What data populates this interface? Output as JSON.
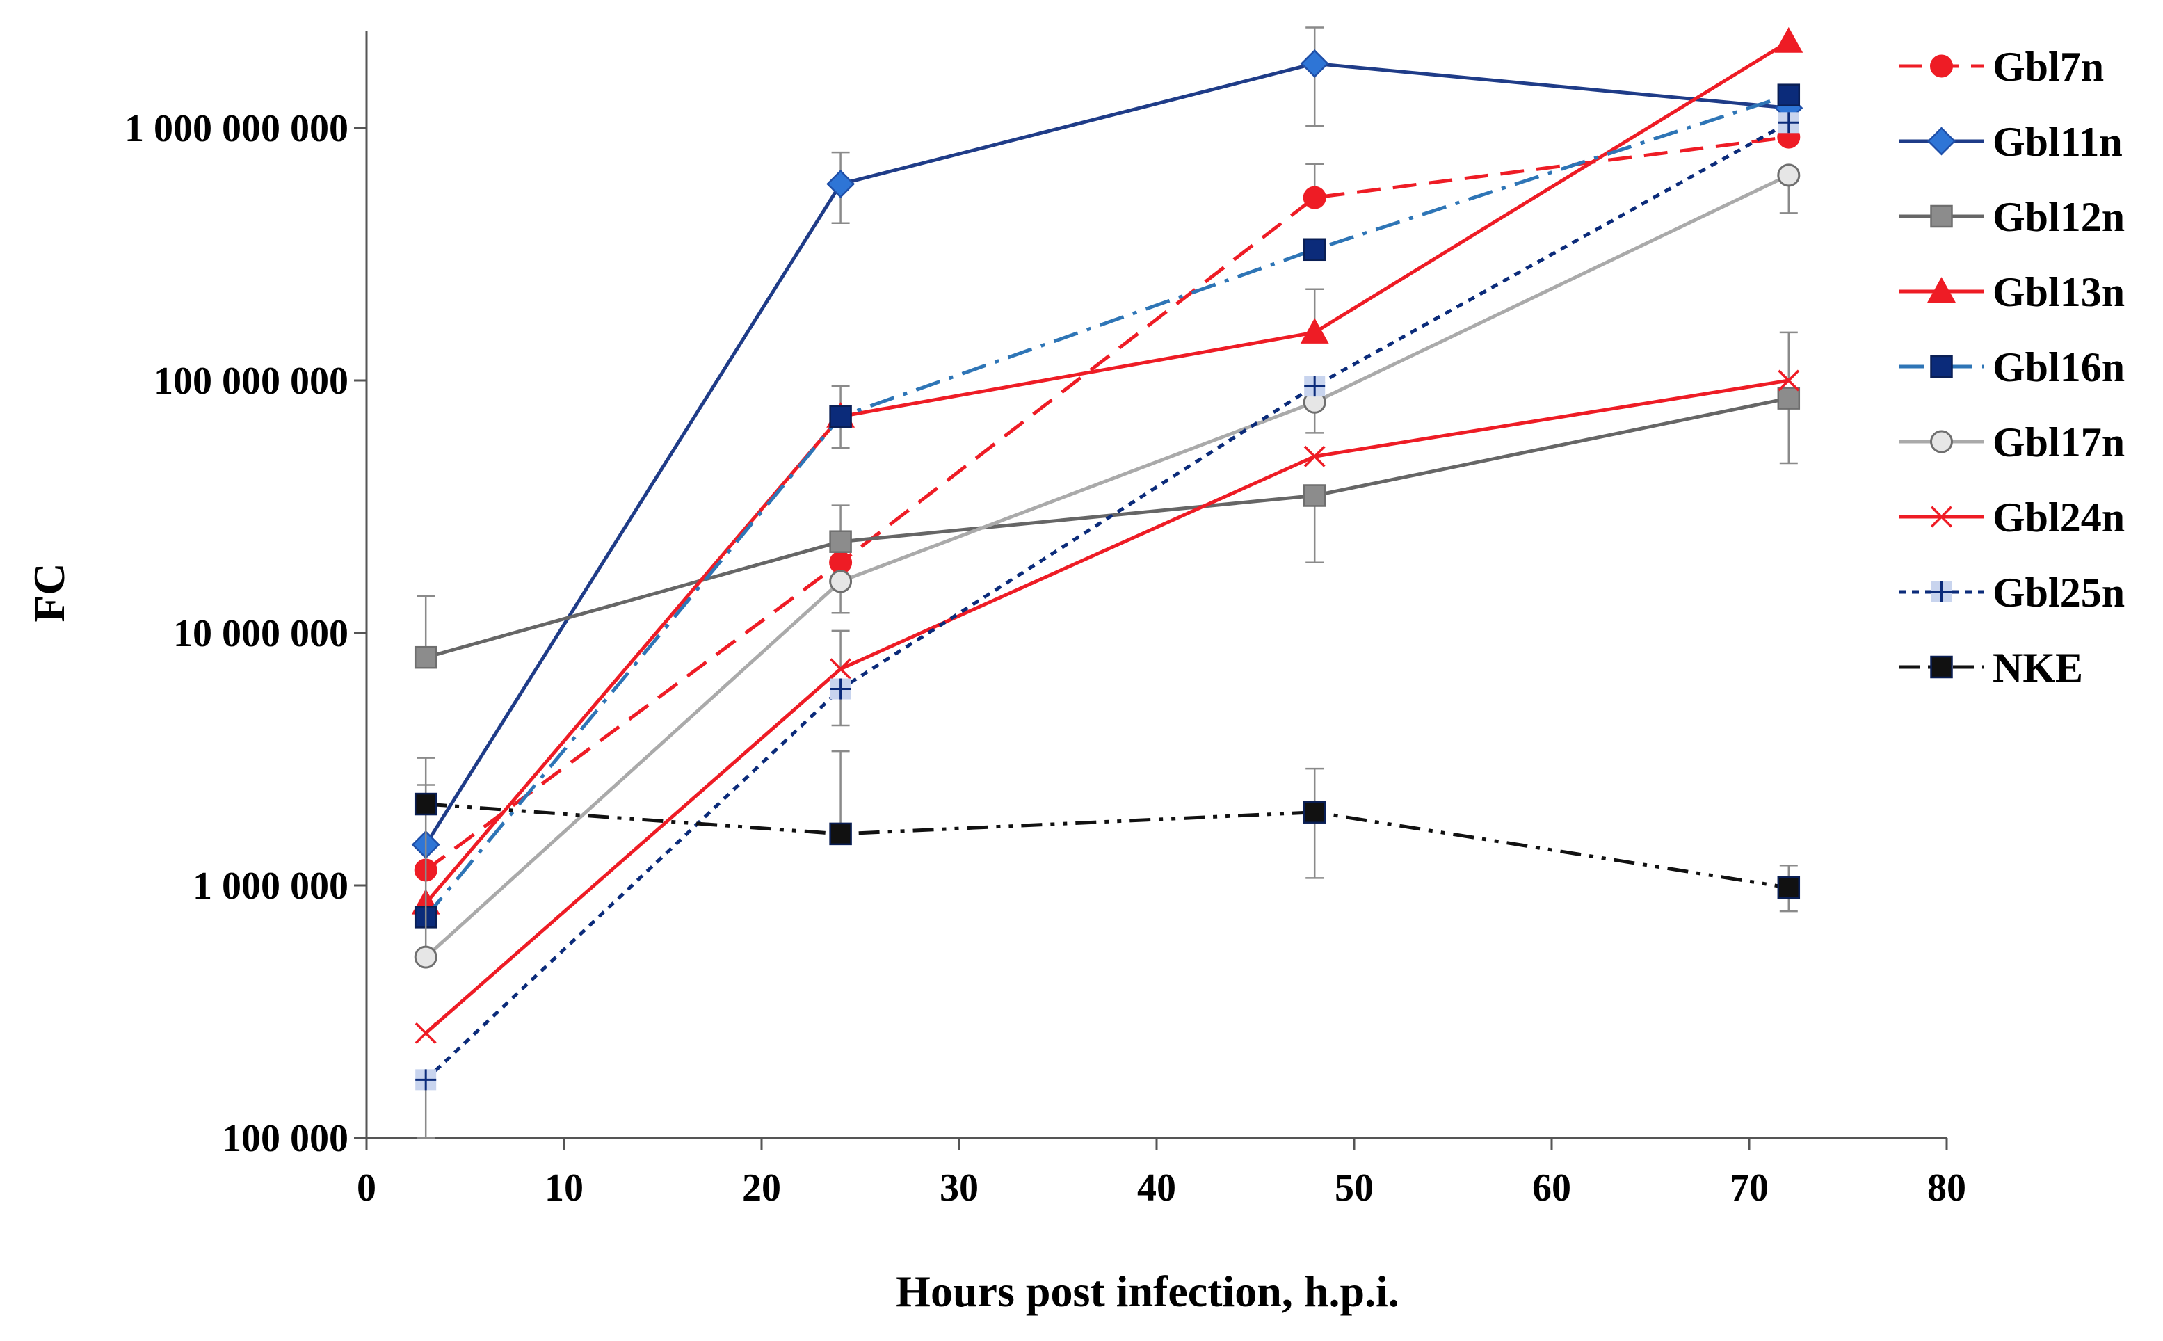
{
  "chart_data": {
    "type": "line",
    "title": "",
    "xlabel": "Hours post infection, h.p.i.",
    "ylabel": "FC",
    "xlim": [
      0,
      80
    ],
    "x_ticks": [
      0,
      10,
      20,
      30,
      40,
      50,
      60,
      70,
      80
    ],
    "x_tick_labels": [
      "0",
      "10",
      "20",
      "30",
      "40",
      "50",
      "60",
      "70",
      "80"
    ],
    "y_scale": "log",
    "ylim": [
      100000,
      3000000000
    ],
    "y_ticks": [
      100000,
      1000000,
      10000000,
      100000000,
      1000000000
    ],
    "y_tick_labels": [
      "100 000",
      "1 000 000",
      "10 000 000",
      "100 000 000",
      "1 000 000 000"
    ],
    "x": [
      3,
      24,
      48,
      72
    ],
    "legend_position": "right",
    "series": [
      {
        "name": "Gbl7n",
        "values": [
          1150000,
          19000000,
          530000000,
          920000000
        ],
        "color": "#ee1c25",
        "dash": "dash",
        "marker": "circle",
        "marker_fill": "#ee1c25",
        "err_upper": [
          null,
          null,
          720000000,
          null
        ],
        "err_lower": [
          null,
          null,
          null,
          null
        ]
      },
      {
        "name": "Gbl11n",
        "values": [
          1450000,
          600000000,
          1800000000,
          1200000000
        ],
        "color": "#1f3c88",
        "dash": "solid",
        "marker": "diamond",
        "marker_fill": "#2e75d6",
        "err_upper": [
          null,
          800000000,
          2500000000,
          null
        ],
        "err_lower": [
          null,
          420000000,
          1020000000,
          null
        ]
      },
      {
        "name": "Gbl12n",
        "values": [
          8000000,
          23000000,
          35000000,
          85000000
        ],
        "color": "#666666",
        "dash": "solid",
        "marker": "square",
        "marker_fill": "#8c8c8c",
        "err_upper": [
          14000000,
          32000000,
          null,
          null
        ],
        "err_lower": [
          null,
          null,
          19000000,
          47000000
        ]
      },
      {
        "name": "Gbl13n",
        "values": [
          850000,
          72000000,
          155000000,
          2200000000
        ],
        "color": "#ee1c25",
        "dash": "solid",
        "marker": "triangle",
        "marker_fill": "#ee1c25",
        "err_upper": [
          null,
          95000000,
          230000000,
          null
        ],
        "err_lower": [
          null,
          54000000,
          null,
          null
        ]
      },
      {
        "name": "Gbl16n",
        "values": [
          750000,
          72000000,
          330000000,
          1350000000
        ],
        "color": "#2e75b6",
        "dash": "dashdot",
        "marker": "square",
        "marker_fill": "#0b2b7a",
        "err_upper": [
          null,
          null,
          null,
          null
        ],
        "err_lower": [
          null,
          null,
          null,
          null
        ]
      },
      {
        "name": "Gbl17n",
        "values": [
          520000,
          16000000,
          82000000,
          650000000
        ],
        "color": "#aaaaaa",
        "dash": "solid",
        "marker": "circle",
        "marker_fill": "#e6e6e6",
        "err_upper": [
          3200000,
          null,
          null,
          null
        ],
        "err_lower": [
          null,
          12000000,
          62000000,
          460000000
        ]
      },
      {
        "name": "Gbl24n",
        "values": [
          260000,
          7200000,
          50000000,
          100000000
        ],
        "color": "#ee1c25",
        "dash": "solid",
        "marker": "x",
        "marker_fill": "#ee1c25",
        "err_upper": [
          null,
          10200000,
          null,
          155000000
        ],
        "err_lower": [
          null,
          null,
          null,
          null
        ]
      },
      {
        "name": "Gbl25n",
        "values": [
          170000,
          6000000,
          95000000,
          1050000000
        ],
        "color": "#0b2b7a",
        "dash": "dot",
        "marker": "plus",
        "marker_fill": "#c8d4ee",
        "err_upper": [
          null,
          null,
          null,
          null
        ],
        "err_lower": [
          100000,
          4300000,
          null,
          null
        ]
      },
      {
        "name": "NKE",
        "values": [
          2100000,
          1600000,
          1950000,
          980000
        ],
        "color": "#111111",
        "dash": "dashdotdot",
        "marker": "square",
        "marker_fill": "#111111",
        "err_upper": [
          2500000,
          3400000,
          2900000,
          1200000
        ],
        "err_lower": [
          null,
          null,
          1070000,
          790000
        ]
      }
    ]
  }
}
